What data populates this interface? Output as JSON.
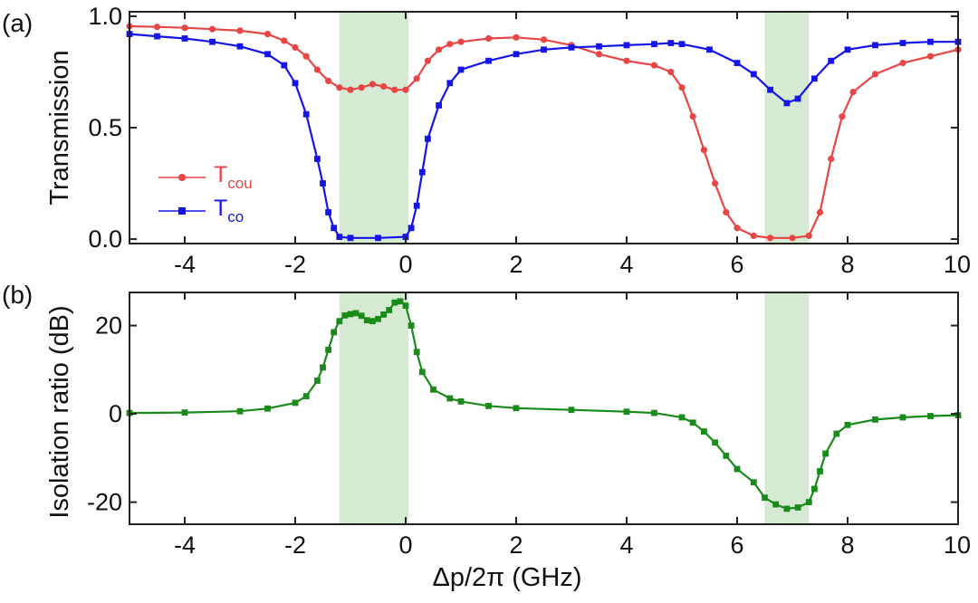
{
  "chart_data": [
    {
      "panel_tag": "(a)",
      "type": "line",
      "ylabel": "Transmission",
      "xlim": [
        -5,
        10
      ],
      "ylim": [
        -0.02,
        1.02
      ],
      "x_ticks": [
        "-4",
        "-2",
        "0",
        "2",
        "4",
        "6",
        "8",
        "10"
      ],
      "y_ticks": [
        "0.0",
        "0.5",
        "1.0"
      ],
      "shaded_bands": [
        [
          -1.2,
          0.05
        ],
        [
          6.5,
          7.3
        ]
      ],
      "band_color": "#d6ead3",
      "legend_position": "lower-left",
      "series": [
        {
          "name": "T",
          "name_subscript": "cou",
          "color": "#e84545",
          "marker": "circle",
          "points": [
            [
              -5,
              0.955
            ],
            [
              -4.5,
              0.952
            ],
            [
              -4,
              0.948
            ],
            [
              -3.5,
              0.942
            ],
            [
              -3,
              0.935
            ],
            [
              -2.5,
              0.92
            ],
            [
              -2.2,
              0.89
            ],
            [
              -2,
              0.86
            ],
            [
              -1.8,
              0.82
            ],
            [
              -1.6,
              0.76
            ],
            [
              -1.4,
              0.71
            ],
            [
              -1.2,
              0.68
            ],
            [
              -1,
              0.67
            ],
            [
              -0.8,
              0.68
            ],
            [
              -0.6,
              0.695
            ],
            [
              -0.4,
              0.685
            ],
            [
              -0.2,
              0.67
            ],
            [
              0,
              0.67
            ],
            [
              0.2,
              0.72
            ],
            [
              0.4,
              0.8
            ],
            [
              0.6,
              0.85
            ],
            [
              0.8,
              0.875
            ],
            [
              1,
              0.885
            ],
            [
              1.5,
              0.9
            ],
            [
              2,
              0.905
            ],
            [
              2.5,
              0.895
            ],
            [
              3,
              0.87
            ],
            [
              3.5,
              0.83
            ],
            [
              4,
              0.8
            ],
            [
              4.5,
              0.78
            ],
            [
              4.8,
              0.75
            ],
            [
              5,
              0.68
            ],
            [
              5.2,
              0.55
            ],
            [
              5.4,
              0.4
            ],
            [
              5.6,
              0.25
            ],
            [
              5.8,
              0.12
            ],
            [
              6,
              0.05
            ],
            [
              6.3,
              0.015
            ],
            [
              6.6,
              0.005
            ],
            [
              7,
              0.005
            ],
            [
              7.3,
              0.015
            ],
            [
              7.5,
              0.12
            ],
            [
              7.7,
              0.36
            ],
            [
              7.9,
              0.55
            ],
            [
              8.1,
              0.66
            ],
            [
              8.5,
              0.74
            ],
            [
              9,
              0.79
            ],
            [
              9.5,
              0.82
            ],
            [
              10,
              0.85
            ]
          ]
        },
        {
          "name": "T",
          "name_subscript": "co",
          "color": "#1515e8",
          "marker": "square",
          "points": [
            [
              -5,
              0.92
            ],
            [
              -4.5,
              0.91
            ],
            [
              -4,
              0.9
            ],
            [
              -3.5,
              0.885
            ],
            [
              -3,
              0.865
            ],
            [
              -2.5,
              0.83
            ],
            [
              -2.2,
              0.78
            ],
            [
              -2,
              0.7
            ],
            [
              -1.8,
              0.56
            ],
            [
              -1.6,
              0.36
            ],
            [
              -1.5,
              0.25
            ],
            [
              -1.4,
              0.12
            ],
            [
              -1.3,
              0.05
            ],
            [
              -1.2,
              0.01
            ],
            [
              -1,
              0.005
            ],
            [
              -0.5,
              0.005
            ],
            [
              0,
              0.01
            ],
            [
              0.1,
              0.05
            ],
            [
              0.2,
              0.15
            ],
            [
              0.3,
              0.3
            ],
            [
              0.4,
              0.45
            ],
            [
              0.6,
              0.6
            ],
            [
              0.8,
              0.7
            ],
            [
              1,
              0.76
            ],
            [
              1.5,
              0.8
            ],
            [
              2,
              0.83
            ],
            [
              2.5,
              0.85
            ],
            [
              3,
              0.86
            ],
            [
              3.5,
              0.865
            ],
            [
              4,
              0.87
            ],
            [
              4.5,
              0.875
            ],
            [
              4.8,
              0.88
            ],
            [
              5,
              0.875
            ],
            [
              5.5,
              0.85
            ],
            [
              6,
              0.79
            ],
            [
              6.3,
              0.74
            ],
            [
              6.6,
              0.67
            ],
            [
              6.9,
              0.61
            ],
            [
              7.1,
              0.63
            ],
            [
              7.4,
              0.72
            ],
            [
              7.7,
              0.8
            ],
            [
              8,
              0.85
            ],
            [
              8.5,
              0.87
            ],
            [
              9,
              0.88
            ],
            [
              9.5,
              0.885
            ],
            [
              10,
              0.885
            ]
          ]
        }
      ]
    },
    {
      "panel_tag": "(b)",
      "type": "line",
      "xlabel": "Δp/2π (GHz)",
      "ylabel": "Isolation ratio (dB)",
      "xlim": [
        -5,
        10
      ],
      "ylim": [
        -25,
        27.5
      ],
      "x_ticks": [
        "-4",
        "-2",
        "0",
        "2",
        "4",
        "6",
        "8",
        "10"
      ],
      "y_ticks": [
        "-20",
        "0",
        "20"
      ],
      "shaded_bands": [
        [
          -1.2,
          0.05
        ],
        [
          6.5,
          7.3
        ]
      ],
      "band_color": "#d6ead3",
      "series": [
        {
          "color": "#1a8a1a",
          "marker": "square",
          "points": [
            [
              -5,
              0.2
            ],
            [
              -4,
              0.3
            ],
            [
              -3,
              0.6
            ],
            [
              -2.5,
              1.2
            ],
            [
              -2,
              2.5
            ],
            [
              -1.8,
              4
            ],
            [
              -1.6,
              7.5
            ],
            [
              -1.5,
              10.5
            ],
            [
              -1.4,
              14.5
            ],
            [
              -1.3,
              18.5
            ],
            [
              -1.2,
              21
            ],
            [
              -1.1,
              22.3
            ],
            [
              -1,
              22.6
            ],
            [
              -0.9,
              22.8
            ],
            [
              -0.8,
              22.2
            ],
            [
              -0.7,
              21.2
            ],
            [
              -0.6,
              21
            ],
            [
              -0.5,
              21.5
            ],
            [
              -0.4,
              22.5
            ],
            [
              -0.3,
              23.5
            ],
            [
              -0.2,
              25.2
            ],
            [
              -0.1,
              25.5
            ],
            [
              0,
              24.5
            ],
            [
              0.1,
              20
            ],
            [
              0.2,
              14
            ],
            [
              0.3,
              9.5
            ],
            [
              0.5,
              5.5
            ],
            [
              0.8,
              3.5
            ],
            [
              1,
              2.8
            ],
            [
              1.5,
              1.8
            ],
            [
              2,
              1.3
            ],
            [
              3,
              0.9
            ],
            [
              4,
              0.5
            ],
            [
              4.5,
              0.2
            ],
            [
              5,
              -0.8
            ],
            [
              5.2,
              -2
            ],
            [
              5.4,
              -4
            ],
            [
              5.6,
              -6.5
            ],
            [
              5.8,
              -9.5
            ],
            [
              6,
              -12.5
            ],
            [
              6.3,
              -15.5
            ],
            [
              6.5,
              -19
            ],
            [
              6.7,
              -20.5
            ],
            [
              6.9,
              -21.5
            ],
            [
              7.1,
              -21.2
            ],
            [
              7.3,
              -20
            ],
            [
              7.4,
              -17
            ],
            [
              7.5,
              -13
            ],
            [
              7.6,
              -9
            ],
            [
              7.8,
              -4.5
            ],
            [
              8,
              -2.5
            ],
            [
              8.5,
              -1.3
            ],
            [
              9,
              -0.8
            ],
            [
              9.5,
              -0.5
            ],
            [
              10,
              -0.3
            ]
          ]
        }
      ]
    }
  ]
}
